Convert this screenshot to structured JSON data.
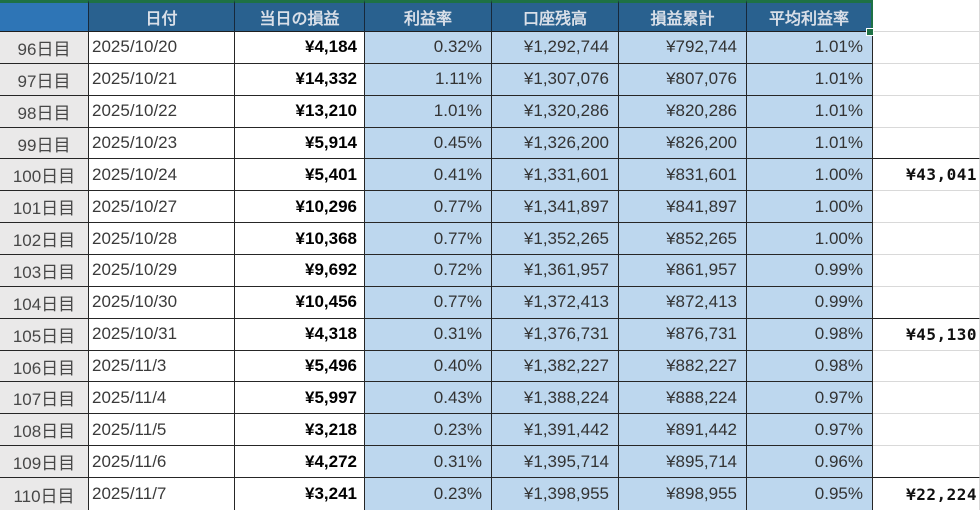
{
  "app": {
    "type": "spreadsheet-trading-log",
    "selection_border_color": "#1E7145",
    "header_bg": "#29618F",
    "corner_cell_bg": "#2E75B6",
    "accent_cell_bg": "#BDD7EE",
    "label_cell_bg": "#EAE9E9"
  },
  "table": {
    "headers": [
      "",
      "日付",
      "当日の損益",
      "利益率",
      "口座残高",
      "損益累計",
      "平均利益率",
      ""
    ],
    "rows": [
      {
        "day_label": "96日目",
        "date": "2025/10/20",
        "daily_pl": "¥4,184",
        "profit_rate": "0.32%",
        "balance": "¥1,292,744",
        "cumulative_pl": "¥792,744",
        "avg_profit_rate": "1.01%",
        "week_total": ""
      },
      {
        "day_label": "97日目",
        "date": "2025/10/21",
        "daily_pl": "¥14,332",
        "profit_rate": "1.11%",
        "balance": "¥1,307,076",
        "cumulative_pl": "¥807,076",
        "avg_profit_rate": "1.01%",
        "week_total": ""
      },
      {
        "day_label": "98日目",
        "date": "2025/10/22",
        "daily_pl": "¥13,210",
        "profit_rate": "1.01%",
        "balance": "¥1,320,286",
        "cumulative_pl": "¥820,286",
        "avg_profit_rate": "1.01%",
        "week_total": ""
      },
      {
        "day_label": "99日目",
        "date": "2025/10/23",
        "daily_pl": "¥5,914",
        "profit_rate": "0.45%",
        "balance": "¥1,326,200",
        "cumulative_pl": "¥826,200",
        "avg_profit_rate": "1.01%",
        "week_total": ""
      },
      {
        "day_label": "100日目",
        "date": "2025/10/24",
        "daily_pl": "¥5,401",
        "profit_rate": "0.41%",
        "balance": "¥1,331,601",
        "cumulative_pl": "¥831,601",
        "avg_profit_rate": "1.00%",
        "week_total": "¥43,041"
      },
      {
        "day_label": "101日目",
        "date": "2025/10/27",
        "daily_pl": "¥10,296",
        "profit_rate": "0.77%",
        "balance": "¥1,341,897",
        "cumulative_pl": "¥841,897",
        "avg_profit_rate": "1.00%",
        "week_total": ""
      },
      {
        "day_label": "102日目",
        "date": "2025/10/28",
        "daily_pl": "¥10,368",
        "profit_rate": "0.77%",
        "balance": "¥1,352,265",
        "cumulative_pl": "¥852,265",
        "avg_profit_rate": "1.00%",
        "week_total": ""
      },
      {
        "day_label": "103日目",
        "date": "2025/10/29",
        "daily_pl": "¥9,692",
        "profit_rate": "0.72%",
        "balance": "¥1,361,957",
        "cumulative_pl": "¥861,957",
        "avg_profit_rate": "0.99%",
        "week_total": ""
      },
      {
        "day_label": "104日目",
        "date": "2025/10/30",
        "daily_pl": "¥10,456",
        "profit_rate": "0.77%",
        "balance": "¥1,372,413",
        "cumulative_pl": "¥872,413",
        "avg_profit_rate": "0.99%",
        "week_total": ""
      },
      {
        "day_label": "105日目",
        "date": "2025/10/31",
        "daily_pl": "¥4,318",
        "profit_rate": "0.31%",
        "balance": "¥1,376,731",
        "cumulative_pl": "¥876,731",
        "avg_profit_rate": "0.98%",
        "week_total": "¥45,130"
      },
      {
        "day_label": "106日目",
        "date": "2025/11/3",
        "daily_pl": "¥5,496",
        "profit_rate": "0.40%",
        "balance": "¥1,382,227",
        "cumulative_pl": "¥882,227",
        "avg_profit_rate": "0.98%",
        "week_total": ""
      },
      {
        "day_label": "107日目",
        "date": "2025/11/4",
        "daily_pl": "¥5,997",
        "profit_rate": "0.43%",
        "balance": "¥1,388,224",
        "cumulative_pl": "¥888,224",
        "avg_profit_rate": "0.97%",
        "week_total": ""
      },
      {
        "day_label": "108日目",
        "date": "2025/11/5",
        "daily_pl": "¥3,218",
        "profit_rate": "0.23%",
        "balance": "¥1,391,442",
        "cumulative_pl": "¥891,442",
        "avg_profit_rate": "0.97%",
        "week_total": ""
      },
      {
        "day_label": "109日目",
        "date": "2025/11/6",
        "daily_pl": "¥4,272",
        "profit_rate": "0.31%",
        "balance": "¥1,395,714",
        "cumulative_pl": "¥895,714",
        "avg_profit_rate": "0.96%",
        "week_total": ""
      },
      {
        "day_label": "110日目",
        "date": "2025/11/7",
        "daily_pl": "¥3,241",
        "profit_rate": "0.23%",
        "balance": "¥1,398,955",
        "cumulative_pl": "¥898,955",
        "avg_profit_rate": "0.95%",
        "week_total": "¥22,224"
      }
    ]
  }
}
